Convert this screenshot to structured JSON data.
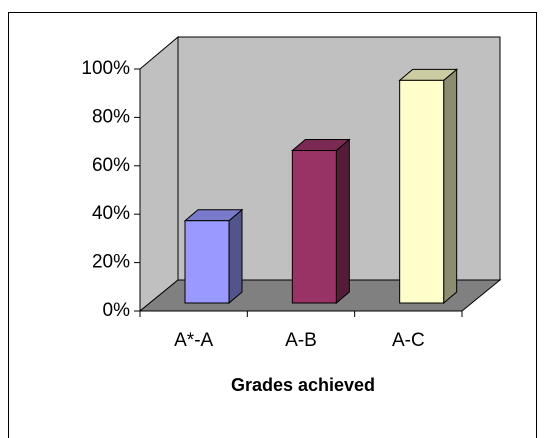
{
  "chart_data": {
    "type": "bar",
    "categories": [
      "A*-A",
      "A-B",
      "A-C"
    ],
    "values": [
      34,
      63,
      92
    ],
    "colors": [
      "#9999ff",
      "#993366",
      "#ffffcc"
    ],
    "x_label": "Grades achieved",
    "ylim": [
      0,
      100
    ],
    "yticks": [
      {
        "value": 0,
        "label": "0%"
      },
      {
        "value": 20,
        "label": "20%"
      },
      {
        "value": 40,
        "label": "40%"
      },
      {
        "value": 60,
        "label": "60%"
      },
      {
        "value": 80,
        "label": "80%"
      },
      {
        "value": 100,
        "label": "100%"
      }
    ]
  }
}
